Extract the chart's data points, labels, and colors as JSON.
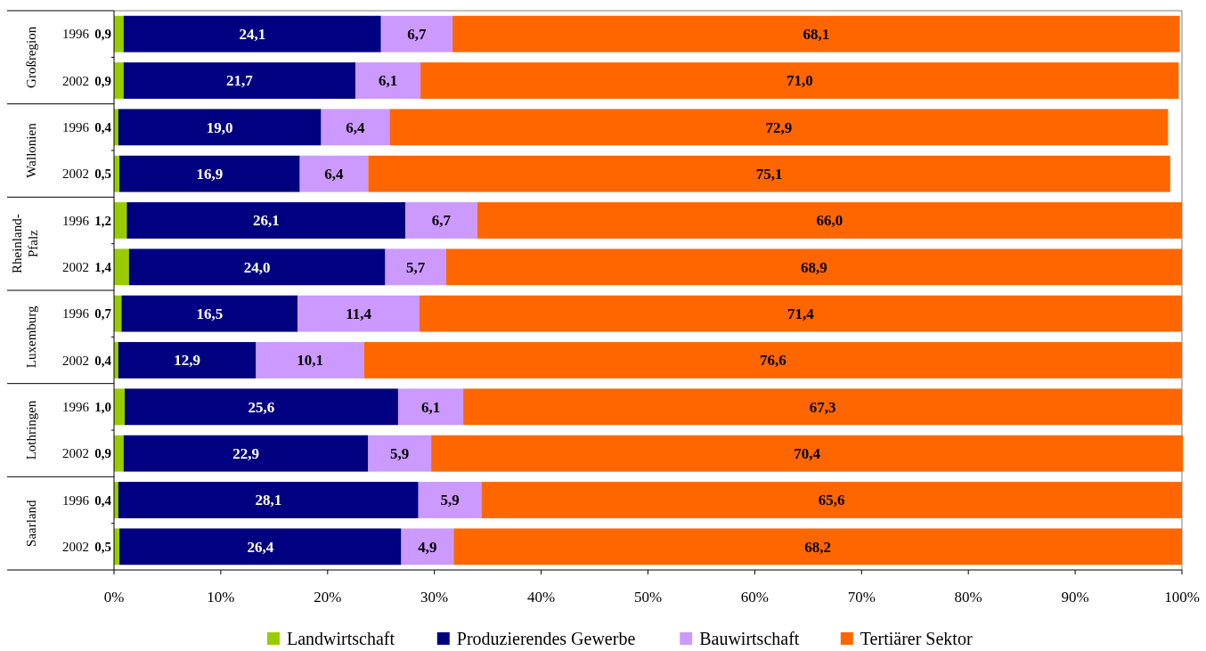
{
  "chart_data": {
    "type": "bar",
    "orientation": "horizontal",
    "stacked": true,
    "categories": [
      "1996",
      "2002",
      "1996",
      "2002",
      "1996",
      "2002",
      "1996",
      "2002",
      "1996",
      "2002",
      "1996",
      "2002"
    ],
    "annotations": [
      "Großregion",
      "Wallonien",
      "Rheinland-Pfalz",
      "Luxemburg",
      "Lothringen",
      "Saarland"
    ],
    "series": [
      {
        "name": "Landwirtschaft",
        "color": "#99cc00",
        "values": [
          0.9,
          0.9,
          0.4,
          0.5,
          1.2,
          1.4,
          0.7,
          0.4,
          1.0,
          0.9,
          0.4,
          0.5
        ],
        "value_labels": [
          "0,9",
          "0,9",
          "0,4",
          "0,5",
          "1,2",
          "1,4",
          "0,7",
          "0,4",
          "1,0",
          "0,9",
          "0,4",
          "0,5"
        ]
      },
      {
        "name": "Produzierendes Gewerbe",
        "color": "#000080",
        "values": [
          24.1,
          21.7,
          19.0,
          16.9,
          26.1,
          24.0,
          16.5,
          12.9,
          25.6,
          22.9,
          28.1,
          26.4
        ],
        "value_labels": [
          "24,1",
          "21,7",
          "19,0",
          "16,9",
          "26,1",
          "24,0",
          "16,5",
          "12,9",
          "25,6",
          "22,9",
          "28,1",
          "26,4"
        ]
      },
      {
        "name": "Bauwirtschaft",
        "color": "#cc99ff",
        "values": [
          6.7,
          6.1,
          6.4,
          6.4,
          6.7,
          5.7,
          11.4,
          10.1,
          6.1,
          5.9,
          5.9,
          4.9
        ],
        "value_labels": [
          "6,7",
          "6,1",
          "6,4",
          "6,4",
          "6,7",
          "5,7",
          "11,4",
          "10,1",
          "6,1",
          "5,9",
          "5,9",
          "4,9"
        ]
      },
      {
        "name": "Tertiärer Sektor",
        "color": "#ff6600",
        "values": [
          68.1,
          71.0,
          72.9,
          75.1,
          66.0,
          68.9,
          71.4,
          76.6,
          67.3,
          70.4,
          65.6,
          68.2
        ],
        "value_labels": [
          "68,1",
          "71,0",
          "72,9",
          "75,1",
          "66,0",
          "68,9",
          "71,4",
          "76,6",
          "67,3",
          "70,4",
          "65,6",
          "68,2"
        ]
      }
    ],
    "xlim": [
      0,
      100
    ],
    "xticks": [
      {
        "value": 0,
        "label": "0%"
      },
      {
        "value": 10,
        "label": "10%"
      },
      {
        "value": 20,
        "label": "20%"
      },
      {
        "value": 30,
        "label": "30%"
      },
      {
        "value": 40,
        "label": "40%"
      },
      {
        "value": 50,
        "label": "50%"
      },
      {
        "value": 60,
        "label": "60%"
      },
      {
        "value": 70,
        "label": "70%"
      },
      {
        "value": 80,
        "label": "80%"
      },
      {
        "value": 90,
        "label": "90%"
      },
      {
        "value": 100,
        "label": "100%"
      }
    ],
    "legend": "bottom"
  }
}
